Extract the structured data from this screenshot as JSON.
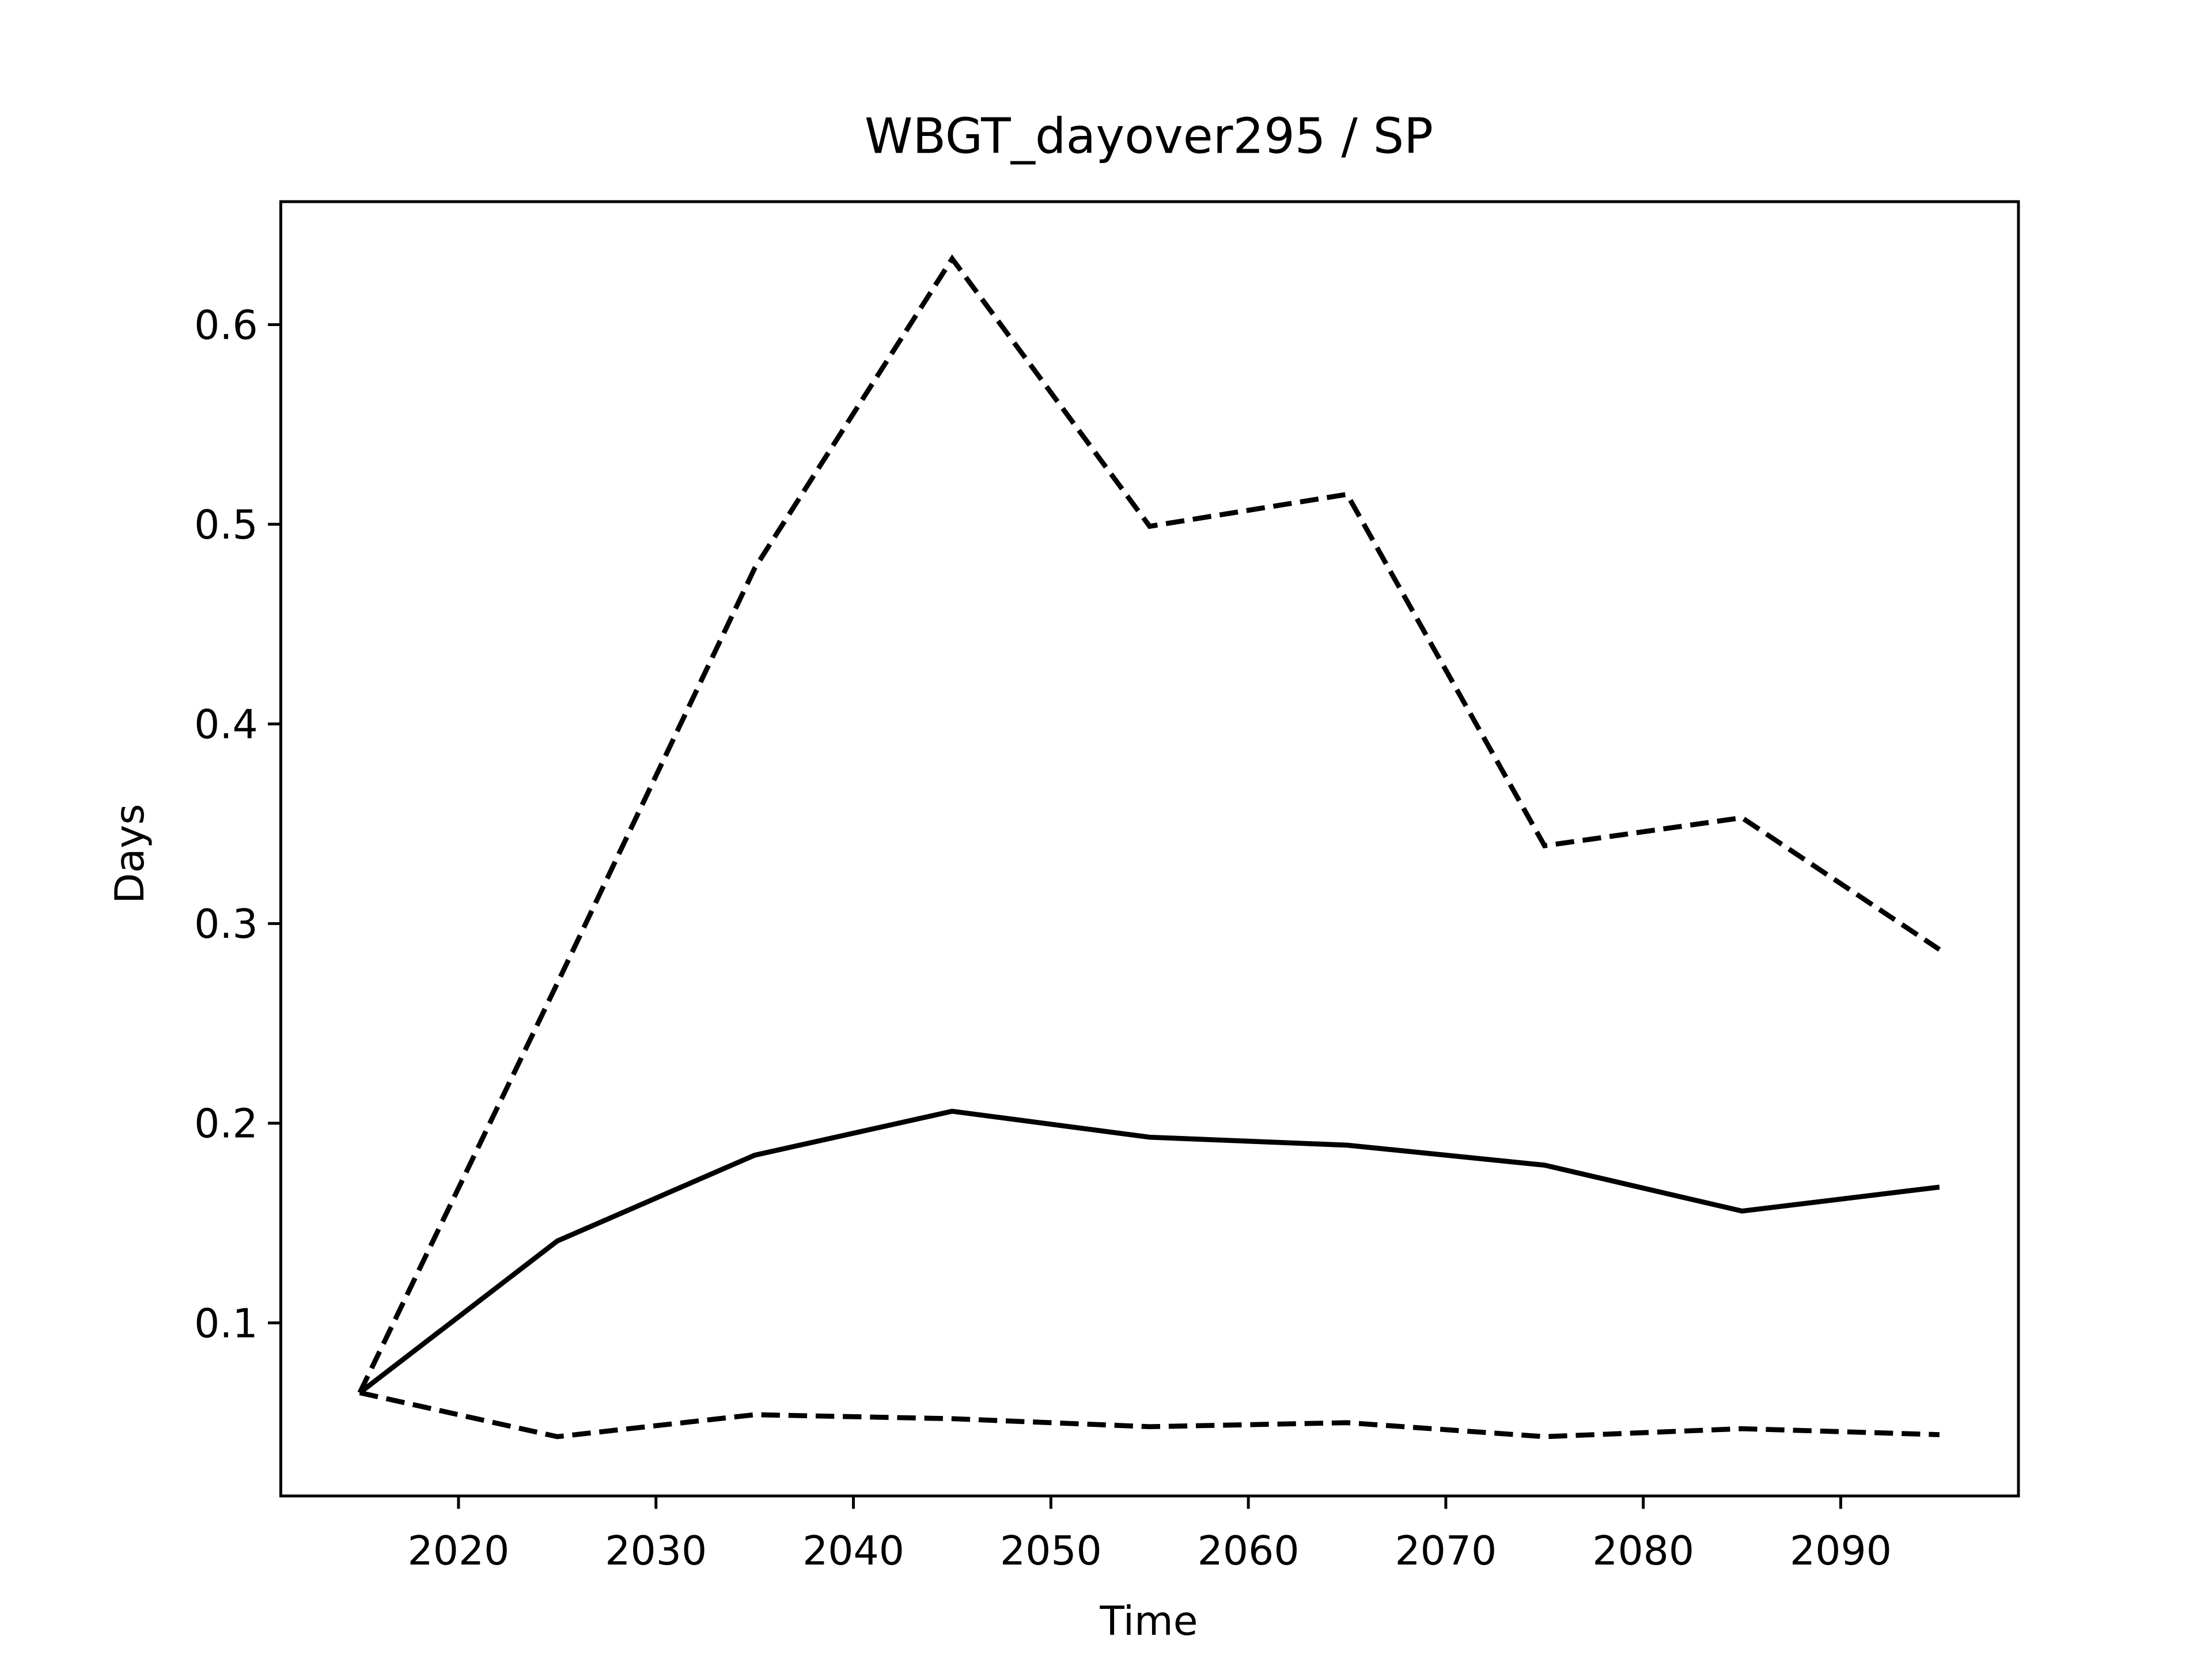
{
  "chart_data": {
    "type": "line",
    "title": "WBGT_dayover295 / SP",
    "xlabel": "Time",
    "ylabel": "Days",
    "x": [
      2015,
      2025,
      2035,
      2045,
      2055,
      2065,
      2075,
      2085,
      2095
    ],
    "series": [
      {
        "color": "#000000",
        "linestyle": "solid",
        "values": [
          0.065,
          0.141,
          0.184,
          0.206,
          0.193,
          0.189,
          0.179,
          0.156,
          0.168
        ]
      },
      {
        "color": "#000000",
        "linestyle": "dashed",
        "values": [
          0.065,
          0.27,
          0.478,
          0.633,
          0.499,
          0.515,
          0.339,
          0.353,
          0.287
        ]
      },
      {
        "color": "#000000",
        "linestyle": "dashed",
        "values": [
          0.065,
          0.043,
          0.054,
          0.052,
          0.048,
          0.05,
          0.043,
          0.047,
          0.044
        ]
      }
    ],
    "xlim": [
      2011,
      2099
    ],
    "xticks": [
      2020,
      2030,
      2040,
      2050,
      2060,
      2070,
      2080,
      2090
    ],
    "ylim": [
      0.0133,
      0.6616
    ],
    "yticks": [
      0.1,
      0.2,
      0.3,
      0.4,
      0.5,
      0.6
    ]
  }
}
